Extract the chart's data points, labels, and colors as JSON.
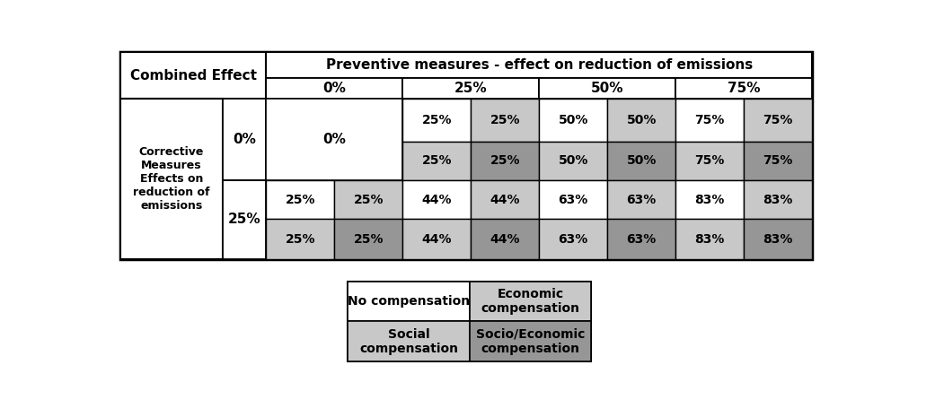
{
  "title_top": "Preventive measures - effect on reduction of emissions",
  "header_row1_left": "Combined Effect",
  "header_row2": [
    "0%",
    "25%",
    "50%",
    "75%"
  ],
  "row_header_main": "Corrective\nMeasures\nEffects on\nreduction of\nemissions",
  "row_sub_0": "0%",
  "row_sub_25": "25%",
  "cell_values_row0": [
    "25%",
    "25%",
    "50%",
    "50%",
    "75%",
    "75%"
  ],
  "cell_values_row1": [
    "25%",
    "25%",
    "50%",
    "50%",
    "75%",
    "75%"
  ],
  "cell_values_row2": [
    "25%",
    "25%",
    "44%",
    "44%",
    "63%",
    "63%",
    "83%",
    "83%"
  ],
  "cell_values_row3": [
    "25%",
    "25%",
    "44%",
    "44%",
    "63%",
    "63%",
    "83%",
    "83%"
  ],
  "merged_0pct": "0%",
  "legend_items": [
    [
      "No compensation",
      "Economic\ncompensation"
    ],
    [
      "Social\ncompensation",
      "Socio/Economic\ncompensation"
    ]
  ],
  "WHITE": "#FFFFFF",
  "LGRAY": "#C8C8C8",
  "MGRAY": "#969696",
  "cell_colors_row0": [
    "#FFFFFF",
    "#C8C8C8",
    "#FFFFFF",
    "#C8C8C8",
    "#FFFFFF",
    "#C8C8C8"
  ],
  "cell_colors_row1": [
    "#C8C8C8",
    "#969696",
    "#C8C8C8",
    "#969696",
    "#C8C8C8",
    "#969696"
  ],
  "cell_colors_row2": [
    "#FFFFFF",
    "#C8C8C8",
    "#FFFFFF",
    "#C8C8C8",
    "#FFFFFF",
    "#C8C8C8",
    "#FFFFFF",
    "#C8C8C8"
  ],
  "cell_colors_row3": [
    "#C8C8C8",
    "#969696",
    "#C8C8C8",
    "#969696",
    "#C8C8C8",
    "#969696",
    "#C8C8C8",
    "#969696"
  ],
  "leg_colors": [
    [
      "#FFFFFF",
      "#C8C8C8"
    ],
    [
      "#C8C8C8",
      "#969696"
    ]
  ]
}
